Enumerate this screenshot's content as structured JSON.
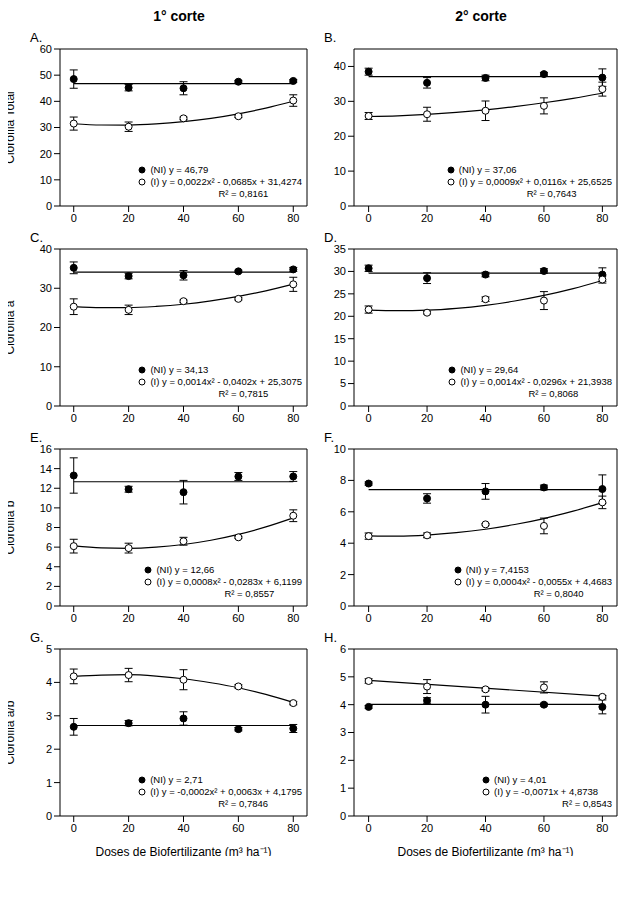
{
  "chart_data": [
    {
      "type": "scatter",
      "title": "A.",
      "subtitle": "1° corte",
      "ylabel": "Clorofila Total",
      "x": [
        0,
        20,
        40,
        60,
        80
      ],
      "xlim": [
        -5,
        85
      ],
      "xticks": [
        0,
        20,
        40,
        60,
        80
      ],
      "ylim": [
        0,
        60
      ],
      "yticks": [
        0,
        10,
        20,
        30,
        40,
        50,
        60
      ],
      "series": [
        {
          "name": "(NI) y = 46,79",
          "color": "#000000",
          "marker": "circle",
          "line_style": "solid",
          "values": [
            48.5,
            45.2,
            45.0,
            47.5,
            47.8
          ],
          "errors": [
            3.5,
            1.2,
            2.5,
            0.5,
            0.5
          ],
          "fit": {
            "x": [
              0,
              80
            ],
            "y": [
              46.79,
              46.79
            ]
          }
        },
        {
          "name": "(I) y = 0,0022x² - 0,0685x + 31,4274",
          "annotation": "R² = 0,8161",
          "color": "#000000",
          "marker": "open_circle",
          "line_style": "solid",
          "values": [
            31.5,
            30.3,
            33.5,
            34.3,
            40.3
          ],
          "errors": [
            2.5,
            1.8,
            0.5,
            0.5,
            2.2
          ],
          "fit": {
            "x": [
              0,
              10,
              20,
              30,
              40,
              50,
              60,
              70,
              80
            ],
            "y": [
              31.43,
              30.96,
              30.94,
              31.36,
              32.21,
              33.51,
              35.24,
              37.41,
              40.03
            ]
          }
        }
      ]
    },
    {
      "type": "scatter",
      "title": "B.",
      "subtitle": "2° corte",
      "x": [
        0,
        20,
        40,
        60,
        80
      ],
      "xlim": [
        -5,
        85
      ],
      "xticks": [
        0,
        20,
        40,
        60,
        80
      ],
      "ylim": [
        0,
        45
      ],
      "yticks": [
        0,
        10,
        20,
        30,
        40
      ],
      "series": [
        {
          "name": "(NI) y = 37,06",
          "color": "#000000",
          "marker": "circle",
          "line_style": "solid",
          "values": [
            38.5,
            35.3,
            36.7,
            37.8,
            36.8
          ],
          "errors": [
            1.0,
            1.5,
            0.8,
            0.5,
            2.5
          ],
          "fit": {
            "x": [
              0,
              80
            ],
            "y": [
              37.06,
              37.06
            ]
          }
        },
        {
          "name": "(I) y = 0,0009x² + 0,0116x + 25,6525",
          "annotation": "R² = 0,7643",
          "color": "#000000",
          "marker": "open_circle",
          "line_style": "solid",
          "values": [
            25.8,
            26.3,
            27.3,
            28.7,
            33.5
          ],
          "errors": [
            1.0,
            2.0,
            2.8,
            2.3,
            2.0
          ],
          "fit": {
            "x": [
              0,
              10,
              20,
              30,
              40,
              50,
              60,
              70,
              80
            ],
            "y": [
              25.65,
              25.86,
              26.25,
              26.81,
              27.55,
              28.48,
              29.59,
              30.87,
              32.33
            ]
          }
        }
      ]
    },
    {
      "type": "scatter",
      "title": "C.",
      "ylabel": "Clorofila a",
      "x": [
        0,
        20,
        40,
        60,
        80
      ],
      "xlim": [
        -5,
        85
      ],
      "xticks": [
        0,
        20,
        40,
        60,
        80
      ],
      "ylim": [
        0,
        40
      ],
      "yticks": [
        0,
        10,
        20,
        30,
        40
      ],
      "series": [
        {
          "name": "(NI) y = 34,13",
          "color": "#000000",
          "marker": "circle",
          "line_style": "solid",
          "values": [
            35.2,
            33.1,
            33.3,
            34.3,
            34.8
          ],
          "errors": [
            1.5,
            0.7,
            1.2,
            0.3,
            0.5
          ],
          "fit": {
            "x": [
              0,
              80
            ],
            "y": [
              34.13,
              34.13
            ]
          }
        },
        {
          "name": "(I) y = 0,0014x² - 0,0402x + 25,3075",
          "annotation": "R² = 0,7815",
          "color": "#000000",
          "marker": "open_circle",
          "line_style": "solid",
          "values": [
            25.3,
            24.5,
            26.7,
            27.3,
            31.0
          ],
          "errors": [
            2.0,
            1.2,
            0.3,
            0.3,
            1.8
          ],
          "fit": {
            "x": [
              0,
              10,
              20,
              30,
              40,
              50,
              60,
              70,
              80
            ],
            "y": [
              25.31,
              25.05,
              25.06,
              25.36,
              25.93,
              26.8,
              27.93,
              29.35,
              31.05
            ]
          }
        }
      ]
    },
    {
      "type": "scatter",
      "title": "D.",
      "x": [
        0,
        20,
        40,
        60,
        80
      ],
      "xlim": [
        -5,
        85
      ],
      "xticks": [
        0,
        20,
        40,
        60,
        80
      ],
      "ylim": [
        0,
        35
      ],
      "yticks": [
        0,
        5,
        10,
        15,
        20,
        25,
        30,
        35
      ],
      "series": [
        {
          "name": "(NI) y = 29,64",
          "color": "#000000",
          "marker": "circle",
          "line_style": "solid",
          "values": [
            30.7,
            28.5,
            29.3,
            30.1,
            29.3
          ],
          "errors": [
            0.7,
            1.2,
            0.5,
            0.5,
            1.5
          ],
          "fit": {
            "x": [
              0,
              80
            ],
            "y": [
              29.64,
              29.64
            ]
          }
        },
        {
          "name": "(I) y = 0,0014x² - 0,0296x + 21,3938",
          "annotation": "R² = 0,8068",
          "color": "#000000",
          "marker": "open_circle",
          "line_style": "solid",
          "values": [
            21.5,
            20.8,
            23.8,
            23.5,
            28.2
          ],
          "errors": [
            0.8,
            0.3,
            0.5,
            2.0,
            0.8
          ],
          "fit": {
            "x": [
              0,
              10,
              20,
              30,
              40,
              50,
              60,
              70,
              80
            ],
            "y": [
              21.39,
              21.24,
              21.36,
              21.77,
              22.45,
              23.41,
              24.65,
              26.17,
              27.97
            ]
          }
        }
      ]
    },
    {
      "type": "scatter",
      "title": "E.",
      "ylabel": "Clorofila b",
      "x": [
        0,
        20,
        40,
        60,
        80
      ],
      "xlim": [
        -5,
        85
      ],
      "xticks": [
        0,
        20,
        40,
        60,
        80
      ],
      "ylim": [
        0,
        16
      ],
      "yticks": [
        0,
        2,
        4,
        6,
        8,
        10,
        12,
        14,
        16
      ],
      "series": [
        {
          "name": "(NI) y = 12,66",
          "color": "#000000",
          "marker": "circle",
          "line_style": "solid",
          "values": [
            13.3,
            11.9,
            11.6,
            13.2,
            13.2
          ],
          "errors": [
            1.8,
            0.3,
            1.2,
            0.4,
            0.5
          ],
          "fit": {
            "x": [
              0,
              80
            ],
            "y": [
              12.66,
              12.66
            ]
          }
        },
        {
          "name": "(I) y = 0,0008x² - 0,0283x + 6,1199",
          "annotation": "R² = 0,8557",
          "color": "#000000",
          "marker": "open_circle",
          "line_style": "solid",
          "values": [
            6.1,
            5.9,
            6.6,
            7.0,
            9.2
          ],
          "errors": [
            0.7,
            0.5,
            0.4,
            0.1,
            0.6
          ],
          "fit": {
            "x": [
              0,
              10,
              20,
              30,
              40,
              50,
              60,
              70,
              80
            ],
            "y": [
              6.12,
              5.92,
              5.87,
              5.99,
              6.27,
              6.7,
              7.3,
              8.06,
              8.98
            ]
          }
        }
      ]
    },
    {
      "type": "scatter",
      "title": "F.",
      "x": [
        0,
        20,
        40,
        60,
        80
      ],
      "xlim": [
        -5,
        85
      ],
      "xticks": [
        0,
        20,
        40,
        60,
        80
      ],
      "ylim": [
        0,
        10
      ],
      "yticks": [
        0,
        2,
        4,
        6,
        8,
        10
      ],
      "series": [
        {
          "name": "(NI) y = 7,4153",
          "color": "#000000",
          "marker": "circle",
          "line_style": "solid",
          "values": [
            7.8,
            6.85,
            7.3,
            7.55,
            7.45
          ],
          "errors": [
            0.1,
            0.3,
            0.5,
            0.15,
            0.9
          ],
          "fit": {
            "x": [
              0,
              80
            ],
            "y": [
              7.4153,
              7.4153
            ]
          }
        },
        {
          "name": "(I) y = 0,0004x² - 0,0055x + 4,4683",
          "annotation": "R² = 0,8040",
          "color": "#000000",
          "marker": "open_circle",
          "line_style": "solid",
          "values": [
            4.45,
            4.5,
            5.2,
            5.1,
            6.6
          ],
          "errors": [
            0.2,
            0.15,
            0.05,
            0.5,
            0.4
          ],
          "fit": {
            "x": [
              0,
              10,
              20,
              30,
              40,
              50,
              60,
              70,
              80
            ],
            "y": [
              4.47,
              4.45,
              4.52,
              4.67,
              4.89,
              5.19,
              5.57,
              6.04,
              6.58
            ]
          }
        }
      ]
    },
    {
      "type": "scatter",
      "title": "G.",
      "ylabel": "Clorofila a/b",
      "xlabel": "Doses de Biofertilizante (m³ ha⁻¹)",
      "x": [
        0,
        20,
        40,
        60,
        80
      ],
      "xlim": [
        -5,
        85
      ],
      "xticks": [
        0,
        20,
        40,
        60,
        80
      ],
      "ylim": [
        0,
        5
      ],
      "yticks": [
        0,
        1,
        2,
        3,
        4,
        5
      ],
      "series": [
        {
          "name": "(NI) y = 2,71",
          "color": "#000000",
          "marker": "circle",
          "line_style": "solid",
          "values": [
            2.67,
            2.78,
            2.92,
            2.6,
            2.62
          ],
          "errors": [
            0.25,
            0.08,
            0.2,
            0.05,
            0.12
          ],
          "fit": {
            "x": [
              0,
              80
            ],
            "y": [
              2.71,
              2.71
            ]
          }
        },
        {
          "name": "(I) y = -0,0002x² + 0,0063x + 4,1795",
          "annotation": "R² = 0,7846",
          "color": "#000000",
          "marker": "open_circle",
          "line_style": "solid",
          "values": [
            4.18,
            4.22,
            4.08,
            3.88,
            3.38
          ],
          "errors": [
            0.22,
            0.2,
            0.3,
            0.05,
            0.05
          ],
          "fit": {
            "x": [
              0,
              10,
              20,
              30,
              40,
              50,
              60,
              70,
              80
            ],
            "y": [
              4.18,
              4.22,
              4.23,
              4.19,
              4.11,
              3.99,
              3.84,
              3.64,
              3.4
            ]
          }
        }
      ]
    },
    {
      "type": "scatter",
      "title": "H.",
      "xlabel": "Doses de Biofertilizante (m³ ha⁻¹)",
      "x": [
        0,
        20,
        40,
        60,
        80
      ],
      "xlim": [
        -5,
        85
      ],
      "xticks": [
        0,
        20,
        40,
        60,
        80
      ],
      "ylim": [
        0,
        6
      ],
      "yticks": [
        0,
        1,
        2,
        3,
        4,
        5,
        6
      ],
      "series": [
        {
          "name": "(NI) y = 4,01",
          "color": "#000000",
          "marker": "circle",
          "line_style": "solid",
          "values": [
            3.92,
            4.15,
            4.0,
            4.0,
            3.92
          ],
          "errors": [
            0.05,
            0.1,
            0.3,
            0.05,
            0.25
          ],
          "fit": {
            "x": [
              0,
              80
            ],
            "y": [
              4.01,
              4.01
            ]
          }
        },
        {
          "name": "(I) y = -0,0071x + 4,8738",
          "annotation": "R² = 0,8543",
          "color": "#000000",
          "marker": "open_circle",
          "line_style": "solid",
          "values": [
            4.85,
            4.65,
            4.55,
            4.62,
            4.28
          ],
          "errors": [
            0.08,
            0.25,
            0.05,
            0.2,
            0.05
          ],
          "fit": {
            "x": [
              0,
              80
            ],
            "y": [
              4.87,
              4.31
            ]
          }
        }
      ]
    }
  ]
}
